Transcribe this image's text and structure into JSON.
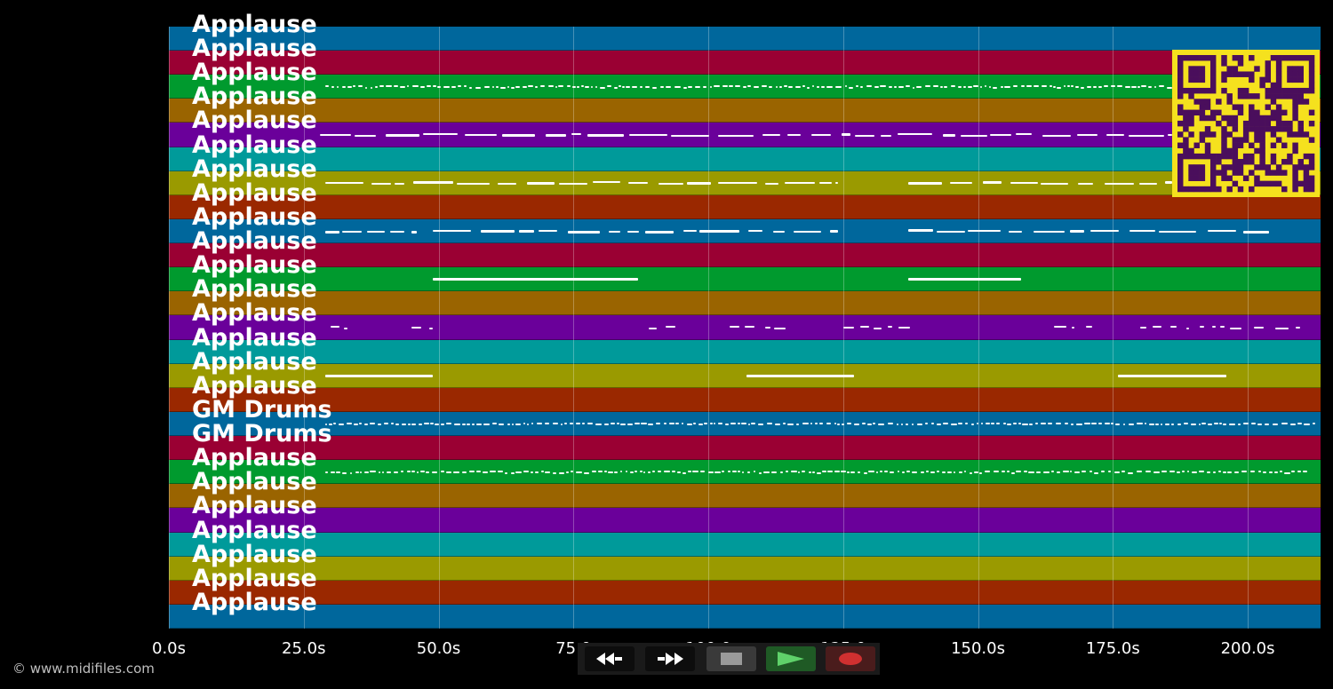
{
  "tracks": [
    {
      "label": "Applause",
      "color": "#00679c"
    },
    {
      "label": "Applause",
      "color": "#9a0033"
    },
    {
      "label": "Applause",
      "color": "#009a2e"
    },
    {
      "label": "Applause",
      "color": "#9a6400"
    },
    {
      "label": "Applause",
      "color": "#6a009a"
    },
    {
      "label": "Applause",
      "color": "#009a9a"
    },
    {
      "label": "Applause",
      "color": "#9a9a00"
    },
    {
      "label": "Applause",
      "color": "#9a2800"
    },
    {
      "label": "Applause",
      "color": "#00679c"
    },
    {
      "label": "Applause",
      "color": "#9a0033"
    },
    {
      "label": "Applause",
      "color": "#009a2e"
    },
    {
      "label": "Applause",
      "color": "#9a6400"
    },
    {
      "label": "Applause",
      "color": "#6a009a"
    },
    {
      "label": "Applause",
      "color": "#009a9a"
    },
    {
      "label": "Applause",
      "color": "#9a9a00"
    },
    {
      "label": "Applause",
      "color": "#9a2800"
    },
    {
      "label": "GM Drums",
      "color": "#00679c"
    },
    {
      "label": "GM Drums",
      "color": "#9a0033"
    },
    {
      "label": "Applause",
      "color": "#009a2e"
    },
    {
      "label": "Applause",
      "color": "#9a6400"
    },
    {
      "label": "Applause",
      "color": "#6a009a"
    },
    {
      "label": "Applause",
      "color": "#009a9a"
    },
    {
      "label": "Applause",
      "color": "#9a9a00"
    },
    {
      "label": "Applause",
      "color": "#9a2800"
    },
    {
      "label": "Applause",
      "color": "#00679c"
    }
  ],
  "time_axis": {
    "range_seconds": [
      0,
      213.5
    ],
    "ticks": [
      {
        "value": 0,
        "label": "0.0s"
      },
      {
        "value": 25,
        "label": "25.0s"
      },
      {
        "value": 50,
        "label": "50.0s"
      },
      {
        "value": 75,
        "label": "75.0"
      },
      {
        "value": 100,
        "label": "100.0"
      },
      {
        "value": 125,
        "label": "125.0"
      },
      {
        "value": 150,
        "label": "150.0s"
      },
      {
        "value": 175,
        "label": "175.0s"
      },
      {
        "value": 200,
        "label": "200.0s"
      }
    ]
  },
  "note_segments": [
    {
      "track": 2,
      "segments": [
        [
          29,
          186
        ]
      ],
      "style": "dotted"
    },
    {
      "track": 4,
      "segments": [
        [
          28,
          186
        ]
      ],
      "style": "dashed"
    },
    {
      "track": 6,
      "segments": [
        [
          29,
          124
        ],
        [
          137,
          186
        ]
      ],
      "style": "dashed"
    },
    {
      "track": 8,
      "segments": [
        [
          29,
          46
        ],
        [
          49,
          124
        ],
        [
          137,
          204
        ]
      ],
      "style": "dashed"
    },
    {
      "track": 10,
      "segments": [
        [
          49,
          87
        ],
        [
          137,
          158
        ]
      ],
      "style": "solid"
    },
    {
      "track": 12,
      "segments": [
        [
          30,
          34
        ],
        [
          45,
          49
        ],
        [
          89,
          96
        ],
        [
          104,
          115
        ],
        [
          125,
          138
        ],
        [
          164,
          172
        ],
        [
          180,
          210
        ]
      ],
      "style": "sparse"
    },
    {
      "track": 14,
      "segments": [
        [
          29,
          49
        ],
        [
          107,
          127
        ],
        [
          176,
          196
        ]
      ],
      "style": "solid"
    },
    {
      "track": 16,
      "segments": [
        [
          29,
          213
        ]
      ],
      "style": "dotted"
    },
    {
      "track": 18,
      "segments": [
        [
          29,
          211
        ]
      ],
      "style": "dotted"
    }
  ],
  "credit": "© www.midifiles.com",
  "transport": {
    "rewind": "rewind-icon",
    "forward": "fast-forward-icon",
    "stop": "stop-icon",
    "play": "play-icon",
    "record": "record-icon"
  }
}
